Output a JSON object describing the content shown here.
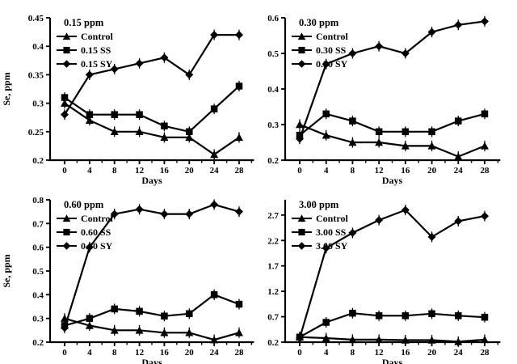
{
  "style": {
    "line_color": "#000000",
    "text_color": "#000000",
    "background": "#ffffff"
  },
  "chart_data": [
    {
      "type": "line",
      "title": "0.15 ppm",
      "xlabel": "Days",
      "ylabel": "Se, ppm",
      "x": [
        0,
        4,
        8,
        12,
        16,
        20,
        24,
        28
      ],
      "xtick_labels": [
        "0",
        "4",
        "8",
        "12",
        "16",
        "20",
        "24",
        "28"
      ],
      "ylim": [
        0.2,
        0.45
      ],
      "yticks": [
        0.2,
        0.25,
        0.3,
        0.35,
        0.4,
        0.45
      ],
      "ytick_labels": [
        "0.2",
        "0.25",
        "0.3",
        "0.35",
        "0.4",
        "0.45"
      ],
      "grid": false,
      "legend_position": "top-left-inside",
      "series": [
        {
          "name": "Control",
          "marker": "triangle",
          "values": [
            0.3,
            0.27,
            0.25,
            0.25,
            0.24,
            0.24,
            0.21,
            0.24
          ]
        },
        {
          "name": "0.15 SS",
          "marker": "square",
          "values": [
            0.31,
            0.28,
            0.28,
            0.28,
            0.26,
            0.25,
            0.29,
            0.33
          ]
        },
        {
          "name": "0.15 SY",
          "marker": "diamond",
          "values": [
            0.28,
            0.35,
            0.36,
            0.37,
            0.38,
            0.35,
            0.42,
            0.42
          ]
        }
      ]
    },
    {
      "type": "line",
      "title": "0.30 ppm",
      "xlabel": "Days",
      "ylabel": "",
      "x": [
        0,
        4,
        8,
        12,
        16,
        20,
        24,
        28
      ],
      "xtick_labels": [
        "0",
        "4",
        "8",
        "12",
        "16",
        "20",
        "24",
        "28"
      ],
      "ylim": [
        0.2,
        0.6
      ],
      "yticks": [
        0.2,
        0.3,
        0.4,
        0.5,
        0.6
      ],
      "ytick_labels": [
        "0.2",
        "0.3",
        "0.4",
        "0.5",
        "0.6"
      ],
      "grid": false,
      "legend_position": "top-left-inside",
      "series": [
        {
          "name": "Control",
          "marker": "triangle",
          "values": [
            0.3,
            0.27,
            0.25,
            0.25,
            0.24,
            0.24,
            0.21,
            0.24
          ]
        },
        {
          "name": "0.30 SS",
          "marker": "square",
          "values": [
            0.27,
            0.33,
            0.31,
            0.28,
            0.28,
            0.28,
            0.31,
            0.33
          ]
        },
        {
          "name": "0.30 SY",
          "marker": "diamond",
          "values": [
            0.26,
            0.47,
            0.5,
            0.52,
            0.5,
            0.56,
            0.58,
            0.59
          ]
        }
      ]
    },
    {
      "type": "line",
      "title": "0.60 ppm",
      "xlabel": "Days",
      "ylabel": "Se, ppm",
      "x": [
        0,
        4,
        8,
        12,
        16,
        20,
        24,
        28
      ],
      "xtick_labels": [
        "0",
        "4",
        "8",
        "12",
        "16",
        "20",
        "24",
        "28"
      ],
      "ylim": [
        0.2,
        0.8
      ],
      "yticks": [
        0.2,
        0.3,
        0.4,
        0.5,
        0.6,
        0.7,
        0.8
      ],
      "ytick_labels": [
        "0.2",
        "0.3",
        "0.4",
        "0.5",
        "0.6",
        "0.7",
        "0.8"
      ],
      "grid": false,
      "legend_position": "top-left-inside",
      "series": [
        {
          "name": "Control",
          "marker": "triangle",
          "values": [
            0.3,
            0.27,
            0.25,
            0.25,
            0.24,
            0.24,
            0.21,
            0.24
          ]
        },
        {
          "name": "0.60 SS",
          "marker": "square",
          "values": [
            0.27,
            0.3,
            0.34,
            0.33,
            0.31,
            0.32,
            0.4,
            0.36
          ]
        },
        {
          "name": "0.60 SY",
          "marker": "diamond",
          "values": [
            0.26,
            0.6,
            0.74,
            0.76,
            0.74,
            0.74,
            0.78,
            0.75
          ]
        }
      ]
    },
    {
      "type": "line",
      "title": "3.00 ppm",
      "xlabel": "Days",
      "ylabel": "",
      "x": [
        0,
        4,
        8,
        12,
        16,
        20,
        24,
        28
      ],
      "xtick_labels": [
        "0",
        "4",
        "8",
        "12",
        "16",
        "20",
        "24",
        "28"
      ],
      "ylim": [
        0.2,
        3.0
      ],
      "yticks": [
        0.2,
        0.7,
        1.2,
        1.7,
        2.2,
        2.7
      ],
      "ytick_labels": [
        "0.2",
        "0.7",
        "1.2",
        "1.7",
        "2.2",
        "2.7"
      ],
      "grid": false,
      "legend_position": "top-left-inside",
      "series": [
        {
          "name": "Control",
          "marker": "triangle",
          "values": [
            0.3,
            0.28,
            0.25,
            0.25,
            0.24,
            0.24,
            0.21,
            0.25
          ]
        },
        {
          "name": "3.00 SS",
          "marker": "square",
          "values": [
            0.3,
            0.59,
            0.77,
            0.72,
            0.72,
            0.76,
            0.72,
            0.69
          ]
        },
        {
          "name": "3.00 SY",
          "marker": "diamond",
          "values": [
            0.28,
            2.05,
            2.35,
            2.6,
            2.8,
            2.27,
            2.58,
            2.68
          ]
        }
      ]
    }
  ]
}
